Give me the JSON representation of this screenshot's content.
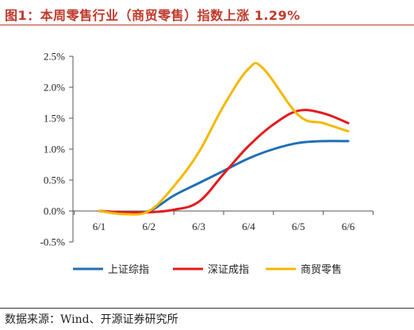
{
  "header": {
    "title": "图1：本周零售行业（商贸零售）指数上涨 1.29%"
  },
  "footer": {
    "source": "数据来源：Wind、开源证券研究所"
  },
  "chart_data": {
    "type": "line",
    "title": "",
    "xlabel": "",
    "ylabel": "",
    "categories": [
      "6/1",
      "6/2",
      "6/3",
      "6/4",
      "6/5",
      "6/6"
    ],
    "yticks": [
      "2.5%",
      "2.0%",
      "1.5%",
      "1.0%",
      "0.5%",
      "0.0%",
      "-0.5%"
    ],
    "ylim": [
      -0.5,
      2.5
    ],
    "grid": false,
    "legend_position": "bottom",
    "series": [
      {
        "name": "上证综指",
        "color": "#1f6fb5",
        "points": [
          [
            0,
            0.0
          ],
          [
            0.5,
            -0.02
          ],
          [
            1,
            0.0
          ],
          [
            1.5,
            0.25
          ],
          [
            2,
            0.45
          ],
          [
            2.5,
            0.65
          ],
          [
            3,
            0.85
          ],
          [
            3.5,
            1.0
          ],
          [
            4,
            1.1
          ],
          [
            4.5,
            1.13
          ],
          [
            5,
            1.13
          ]
        ]
      },
      {
        "name": "深证成指",
        "color": "#e31a1c",
        "points": [
          [
            0,
            0.0
          ],
          [
            0.5,
            -0.02
          ],
          [
            1,
            -0.02
          ],
          [
            1.5,
            0.02
          ],
          [
            2,
            0.15
          ],
          [
            2.5,
            0.6
          ],
          [
            3,
            1.05
          ],
          [
            3.5,
            1.4
          ],
          [
            4,
            1.62
          ],
          [
            4.5,
            1.58
          ],
          [
            5,
            1.42
          ]
        ]
      },
      {
        "name": "商贸零售",
        "color": "#f5b800",
        "points": [
          [
            0,
            0.0
          ],
          [
            0.5,
            -0.05
          ],
          [
            1,
            0.0
          ],
          [
            1.5,
            0.4
          ],
          [
            2,
            0.95
          ],
          [
            2.5,
            1.7
          ],
          [
            3,
            2.3
          ],
          [
            3.3,
            2.3
          ],
          [
            4,
            1.55
          ],
          [
            4.5,
            1.42
          ],
          [
            5,
            1.29
          ]
        ]
      }
    ]
  }
}
